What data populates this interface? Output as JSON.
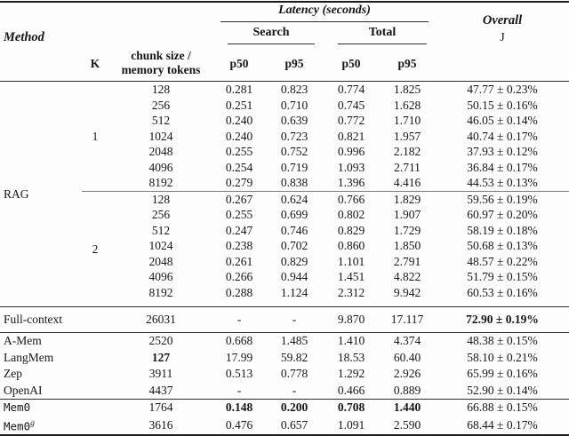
{
  "header": {
    "method": "Method",
    "k": "K",
    "chunk_line1": "chunk size /",
    "chunk_line2": "memory tokens",
    "latency_group": "Latency (seconds)",
    "search_group": "Search",
    "total_group": "Total",
    "p50": "p50",
    "p95": "p95",
    "overall_line1": "Overall",
    "overall_line2": "J"
  },
  "colors": {
    "text": "#161616",
    "thick_rule": "#1c1c1c",
    "thin_rule": "#2e2e2e",
    "inner_rule": "#7d7d7d",
    "background": "#fdfdfd"
  },
  "rag": {
    "label": "RAG",
    "k1": {
      "k": "1",
      "rows": [
        {
          "c": "128",
          "s50": "0.281",
          "s95": "0.823",
          "t50": "0.774",
          "t95": "1.825",
          "ov": "47.77 ± 0.23%"
        },
        {
          "c": "256",
          "s50": "0.251",
          "s95": "0.710",
          "t50": "0.745",
          "t95": "1.628",
          "ov": "50.15 ± 0.16%"
        },
        {
          "c": "512",
          "s50": "0.240",
          "s95": "0.639",
          "t50": "0.772",
          "t95": "1.710",
          "ov": "46.05 ± 0.14%"
        },
        {
          "c": "1024",
          "s50": "0.240",
          "s95": "0.723",
          "t50": "0.821",
          "t95": "1.957",
          "ov": "40.74 ± 0.17%"
        },
        {
          "c": "2048",
          "s50": "0.255",
          "s95": "0.752",
          "t50": "0.996",
          "t95": "2.182",
          "ov": "37.93 ± 0.12%"
        },
        {
          "c": "4096",
          "s50": "0.254",
          "s95": "0.719",
          "t50": "1.093",
          "t95": "2.711",
          "ov": "36.84 ± 0.17%"
        },
        {
          "c": "8192",
          "s50": "0.279",
          "s95": "0.838",
          "t50": "1.396",
          "t95": "4.416",
          "ov": "44.53 ± 0.13%"
        }
      ]
    },
    "k2": {
      "k": "2",
      "rows": [
        {
          "c": "128",
          "s50": "0.267",
          "s95": "0.624",
          "t50": "0.766",
          "t95": "1.829",
          "ov": "59.56 ± 0.19%"
        },
        {
          "c": "256",
          "s50": "0.255",
          "s95": "0.699",
          "t50": "0.802",
          "t95": "1.907",
          "ov": "60.97 ± 0.20%"
        },
        {
          "c": "512",
          "s50": "0.247",
          "s95": "0.746",
          "t50": "0.829",
          "t95": "1.729",
          "ov": "58.19 ± 0.18%"
        },
        {
          "c": "1024",
          "s50": "0.238",
          "s95": "0.702",
          "t50": "0.860",
          "t95": "1.850",
          "ov": "50.68 ± 0.13%"
        },
        {
          "c": "2048",
          "s50": "0.261",
          "s95": "0.829",
          "t50": "1.101",
          "t95": "2.791",
          "ov": "48.57 ± 0.22%"
        },
        {
          "c": "4096",
          "s50": "0.266",
          "s95": "0.944",
          "t50": "1.451",
          "t95": "4.822",
          "ov": "51.79 ± 0.15%"
        },
        {
          "c": "8192",
          "s50": "0.288",
          "s95": "1.124",
          "t50": "2.312",
          "t95": "9.942",
          "ov": "60.53 ± 0.16%"
        }
      ]
    }
  },
  "full_context": {
    "method": "Full-context",
    "c": "26031",
    "s50": "-",
    "s95": "-",
    "t50": "9.870",
    "t95": "17.117",
    "ov": "72.90 ± 0.19%"
  },
  "baselines": [
    {
      "method": "A-Mem",
      "c": "2520",
      "s50": "0.668",
      "s95": "1.485",
      "t50": "1.410",
      "t95": "4.374",
      "ov": "48.38 ± 0.15%"
    },
    {
      "method": "LangMem",
      "c": "127",
      "s50": "17.99",
      "s95": "59.82",
      "t50": "18.53",
      "t95": "60.40",
      "ov": "58.10 ± 0.21%"
    },
    {
      "method": "Zep",
      "c": "3911",
      "s50": "0.513",
      "s95": "0.778",
      "t50": "1.292",
      "t95": "2.926",
      "ov": "65.99 ± 0.16%"
    },
    {
      "method": "OpenAI",
      "c": "4437",
      "s50": "-",
      "s95": "-",
      "t50": "0.466",
      "t95": "0.889",
      "ov": "52.90 ± 0.14%"
    }
  ],
  "mem0": {
    "method": "Mem0",
    "c": "1764",
    "s50": "0.148",
    "s95": "0.200",
    "t50": "0.708",
    "t95": "1.440",
    "ov": "66.88 ± 0.15%"
  },
  "mem0g": {
    "method": "Mem0",
    "sup": "g",
    "c": "3616",
    "s50": "0.476",
    "s95": "0.657",
    "t50": "1.091",
    "t95": "2.590",
    "ov": "68.44 ± 0.17%"
  }
}
